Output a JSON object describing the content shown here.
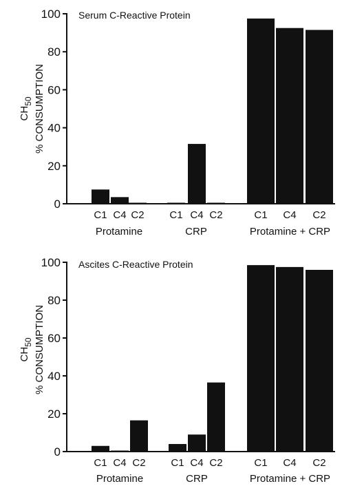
{
  "chart_data": [
    {
      "type": "bar",
      "title": "Serum C-Reactive Protein",
      "ylabel_line1": "CH",
      "ylabel_sub": "50",
      "ylabel_line2": "% CONSUMPTION",
      "ylim": [
        0,
        100
      ],
      "yticks": [
        0,
        20,
        40,
        60,
        80,
        100
      ],
      "groups": [
        {
          "label": "Protamine",
          "categories": [
            "C1",
            "C4",
            "C2"
          ],
          "values": [
            7.5,
            3.5,
            0.5
          ]
        },
        {
          "label": "CRP",
          "categories": [
            "C1",
            "C4",
            "C2"
          ],
          "values": [
            0.5,
            31.5,
            0.5
          ]
        },
        {
          "label": "Protamine + CRP",
          "categories": [
            "C1",
            "C4",
            "C2"
          ],
          "values": [
            97.5,
            92.5,
            91.5
          ]
        }
      ]
    },
    {
      "type": "bar",
      "title": "Ascites C-Reactive Protein",
      "ylabel_line1": "CH",
      "ylabel_sub": "50",
      "ylabel_line2": "% CONSUMPTION",
      "ylim": [
        0,
        100
      ],
      "yticks": [
        0,
        20,
        40,
        60,
        80,
        100
      ],
      "groups": [
        {
          "label": "Protamine",
          "categories": [
            "C1",
            "C4",
            "C2"
          ],
          "values": [
            3,
            0.5,
            16.5
          ]
        },
        {
          "label": "CRP",
          "categories": [
            "C1",
            "C4",
            "C2"
          ],
          "values": [
            4,
            9,
            36.5
          ]
        },
        {
          "label": "Protamine + CRP",
          "categories": [
            "C1",
            "C4",
            "C2"
          ],
          "values": [
            98.5,
            97.5,
            96
          ]
        }
      ]
    }
  ]
}
